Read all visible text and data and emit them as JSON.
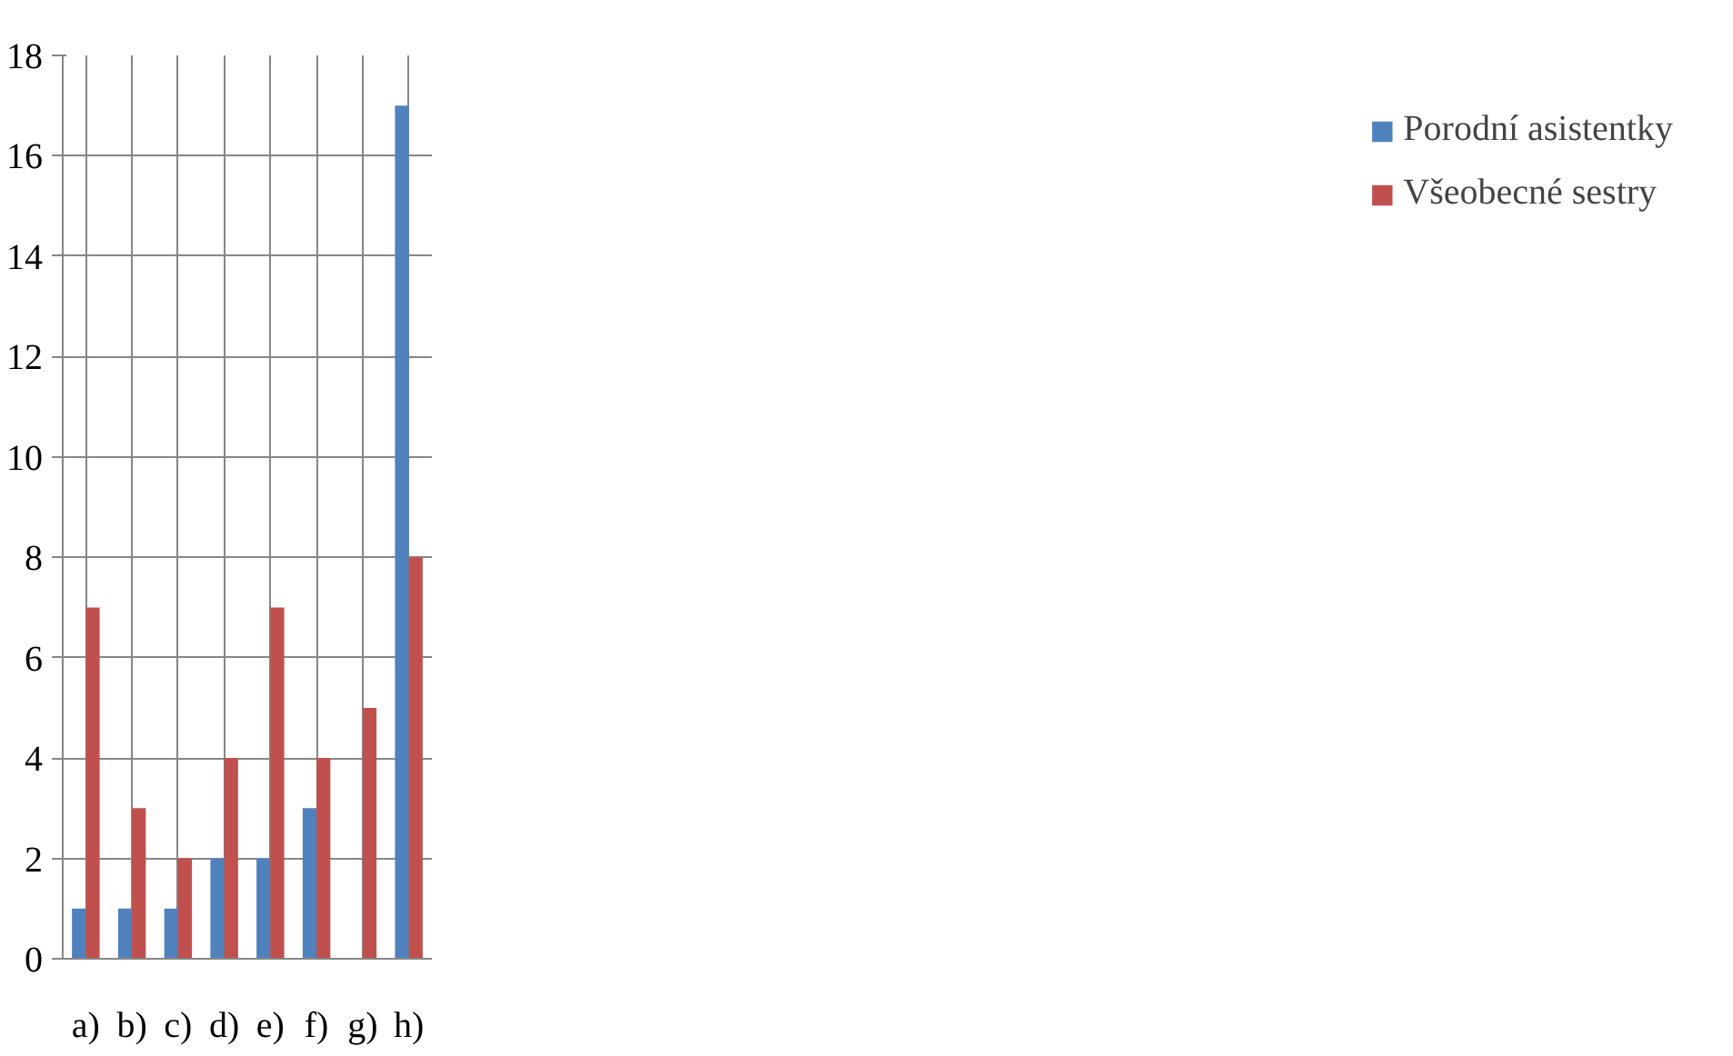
{
  "chart_data": {
    "type": "bar",
    "categories": [
      "a)",
      "b)",
      "c)",
      "d)",
      "e)",
      "f)",
      "g)",
      "h)"
    ],
    "series": [
      {
        "name": "Porodní asistentky",
        "color": "#4f81bd",
        "values": [
          1,
          1,
          1,
          2,
          2,
          3,
          0,
          17
        ]
      },
      {
        "name": "Všeobecné sestry",
        "color": "#c0504d",
        "values": [
          7,
          3,
          2,
          4,
          7,
          4,
          5,
          8
        ]
      }
    ],
    "ylim": [
      0,
      18
    ],
    "yticks": [
      0,
      2,
      4,
      6,
      8,
      10,
      12,
      14,
      16,
      18
    ],
    "grid": true,
    "legend": "right"
  }
}
